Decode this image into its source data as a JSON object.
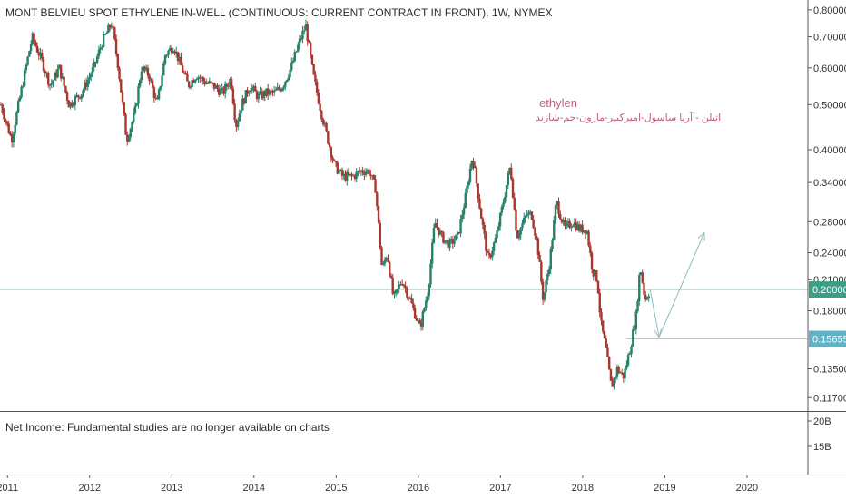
{
  "header": {
    "title": "MONT BELVIEU SPOT ETHYLENE IN-WELL (CONTINUOUS: CURRENT CONTRACT IN FRONT), 1W, NYMEX"
  },
  "annotation": {
    "line1": "ethylen",
    "line2": "اتیلن - آریا ساسول-امیرکبیر-مارون-جم-شازند",
    "color": "#c2607e"
  },
  "study_pane": {
    "text": "Net Income: Fundamental studies are no longer available on charts",
    "ticks": [
      "20B",
      "15B"
    ]
  },
  "colors": {
    "up": "#26806a",
    "down": "#a8382f",
    "current_price_tag": "#3d9e86",
    "target_tag": "#5fb3c8",
    "projection": "#8fbcbc"
  },
  "chart_data": {
    "type": "candlestick",
    "title": "MONT BELVIEU SPOT ETHYLENE IN-WELL (CONTINUOUS: CURRENT CONTRACT IN FRONT), 1W, NYMEX",
    "y_scale": "log",
    "ylim": [
      0.11,
      0.84
    ],
    "y_ticks": [
      0.8,
      0.7,
      0.6,
      0.5,
      0.4,
      0.34,
      0.28,
      0.24,
      0.21,
      0.18,
      0.135,
      0.117
    ],
    "y_tick_labels": [
      "0.80000",
      "0.70000",
      "0.60000",
      "0.50000",
      "0.40000",
      "0.34000",
      "0.28000",
      "0.24000",
      "0.21000",
      "0.18000",
      "0.13500",
      "0.11700"
    ],
    "xlim": [
      2010.92,
      2020.73
    ],
    "x_ticks": [
      2011,
      2012,
      2013,
      2014,
      2015,
      2016,
      2017,
      2018,
      2019,
      2020
    ],
    "x_tick_labels": [
      "2011",
      "2012",
      "2013",
      "2014",
      "2015",
      "2016",
      "2017",
      "2018",
      "2019",
      "2020"
    ],
    "current_price": {
      "value": 0.2,
      "label": "0.20000"
    },
    "target_price": {
      "value": 0.15655,
      "label": "0.15655"
    },
    "price_path": [
      [
        2010.92,
        0.5
      ],
      [
        2011.05,
        0.42
      ],
      [
        2011.18,
        0.55
      ],
      [
        2011.3,
        0.7
      ],
      [
        2011.42,
        0.62
      ],
      [
        2011.52,
        0.55
      ],
      [
        2011.63,
        0.6
      ],
      [
        2011.75,
        0.5
      ],
      [
        2011.9,
        0.53
      ],
      [
        2012.05,
        0.6
      ],
      [
        2012.15,
        0.68
      ],
      [
        2012.27,
        0.75
      ],
      [
        2012.35,
        0.6
      ],
      [
        2012.45,
        0.42
      ],
      [
        2012.55,
        0.48
      ],
      [
        2012.63,
        0.6
      ],
      [
        2012.72,
        0.58
      ],
      [
        2012.82,
        0.5
      ],
      [
        2012.92,
        0.64
      ],
      [
        2013.02,
        0.67
      ],
      [
        2013.12,
        0.6
      ],
      [
        2013.2,
        0.55
      ],
      [
        2013.3,
        0.58
      ],
      [
        2013.4,
        0.56
      ],
      [
        2013.5,
        0.55
      ],
      [
        2013.62,
        0.53
      ],
      [
        2013.72,
        0.57
      ],
      [
        2013.78,
        0.45
      ],
      [
        2013.85,
        0.5
      ],
      [
        2013.95,
        0.55
      ],
      [
        2014.05,
        0.52
      ],
      [
        2014.15,
        0.53
      ],
      [
        2014.25,
        0.53
      ],
      [
        2014.35,
        0.55
      ],
      [
        2014.45,
        0.6
      ],
      [
        2014.55,
        0.68
      ],
      [
        2014.63,
        0.74
      ],
      [
        2014.72,
        0.58
      ],
      [
        2014.82,
        0.48
      ],
      [
        2014.9,
        0.42
      ],
      [
        2014.98,
        0.37
      ],
      [
        2015.08,
        0.35
      ],
      [
        2015.2,
        0.35
      ],
      [
        2015.3,
        0.36
      ],
      [
        2015.4,
        0.36
      ],
      [
        2015.48,
        0.33
      ],
      [
        2015.56,
        0.22
      ],
      [
        2015.62,
        0.24
      ],
      [
        2015.7,
        0.19
      ],
      [
        2015.8,
        0.21
      ],
      [
        2015.9,
        0.19
      ],
      [
        2016.02,
        0.165
      ],
      [
        2016.12,
        0.2
      ],
      [
        2016.2,
        0.28
      ],
      [
        2016.28,
        0.26
      ],
      [
        2016.38,
        0.25
      ],
      [
        2016.48,
        0.26
      ],
      [
        2016.58,
        0.32
      ],
      [
        2016.66,
        0.39
      ],
      [
        2016.75,
        0.3
      ],
      [
        2016.85,
        0.23
      ],
      [
        2016.95,
        0.26
      ],
      [
        2017.02,
        0.3
      ],
      [
        2017.12,
        0.37
      ],
      [
        2017.2,
        0.26
      ],
      [
        2017.32,
        0.29
      ],
      [
        2017.38,
        0.29
      ],
      [
        2017.45,
        0.25
      ],
      [
        2017.52,
        0.19
      ],
      [
        2017.6,
        0.23
      ],
      [
        2017.68,
        0.31
      ],
      [
        2017.78,
        0.27
      ],
      [
        2017.88,
        0.28
      ],
      [
        2017.96,
        0.27
      ],
      [
        2018.05,
        0.27
      ],
      [
        2018.12,
        0.22
      ],
      [
        2018.18,
        0.21
      ],
      [
        2018.22,
        0.17
      ],
      [
        2018.28,
        0.15
      ],
      [
        2018.35,
        0.123
      ],
      [
        2018.42,
        0.135
      ],
      [
        2018.5,
        0.13
      ],
      [
        2018.58,
        0.15
      ],
      [
        2018.65,
        0.175
      ],
      [
        2018.7,
        0.225
      ],
      [
        2018.76,
        0.19
      ],
      [
        2018.82,
        0.2
      ]
    ],
    "projection_path": [
      [
        2018.82,
        0.2
      ],
      [
        2018.93,
        0.158
      ],
      [
        2019.48,
        0.265
      ]
    ],
    "study_pane": {
      "name": "Net Income",
      "y_tick_labels": [
        "20B",
        "15B"
      ]
    }
  }
}
